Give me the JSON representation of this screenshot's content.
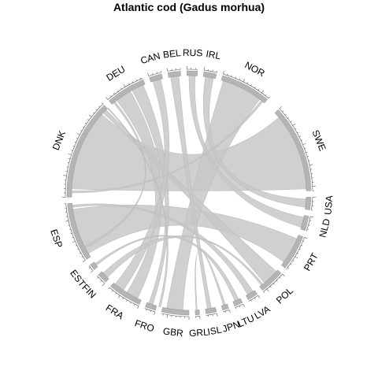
{
  "chart_data": {
    "type": "chord",
    "title": "Atlantic cod (Gadus morhua)",
    "sectors": [
      {
        "name": "SWE",
        "start": 47,
        "end": 89
      },
      {
        "name": "USA",
        "start": 92,
        "end": 98
      },
      {
        "name": "NLD",
        "start": 101,
        "end": 108
      },
      {
        "name": "PRT",
        "start": 111,
        "end": 128
      },
      {
        "name": "POL",
        "start": 131,
        "end": 143
      },
      {
        "name": "LVA",
        "start": 146,
        "end": 151
      },
      {
        "name": "LTU",
        "start": 154,
        "end": 158
      },
      {
        "name": "JPN",
        "start": 161,
        "end": 164
      },
      {
        "name": "ISL",
        "start": 167,
        "end": 172
      },
      {
        "name": "GRL",
        "start": 175,
        "end": 177
      },
      {
        "name": "GBR",
        "start": 180,
        "end": 193
      },
      {
        "name": "FRO",
        "start": 196,
        "end": 201
      },
      {
        "name": "FRA",
        "start": 204,
        "end": 220
      },
      {
        "name": "FIN",
        "start": 223,
        "end": 228
      },
      {
        "name": "EST",
        "start": 231,
        "end": 234
      },
      {
        "name": "ESP",
        "start": 237,
        "end": 265
      },
      {
        "name": "DNK",
        "start": 268,
        "end": 316
      },
      {
        "name": "DEU",
        "start": 319,
        "end": 338
      },
      {
        "name": "CAN",
        "start": 341,
        "end": 347
      },
      {
        "name": "BEL",
        "start": 350,
        "end": 356
      },
      {
        "name": "RUS",
        "start": 359,
        "end": 364
      },
      {
        "name": "IRL",
        "start": 367,
        "end": 373
      },
      {
        "name": "NOR",
        "start": 376,
        "end": 400
      }
    ],
    "links": [
      {
        "s1": 272,
        "s2": 312,
        "t1": 50,
        "t2": 88
      },
      {
        "s1": 239,
        "s2": 262,
        "t1": 113,
        "t2": 126
      },
      {
        "s1": 377,
        "s2": 397,
        "t1": 183,
        "t2": 191
      },
      {
        "s1": 322,
        "s2": 330,
        "t1": 206,
        "t2": 212
      },
      {
        "s1": 313,
        "s2": 315,
        "t1": 132,
        "t2": 140
      },
      {
        "s1": 331,
        "s2": 337,
        "t1": 198,
        "t2": 200
      },
      {
        "s1": 342,
        "s2": 346,
        "t1": 214,
        "t2": 219
      },
      {
        "s1": 351,
        "s2": 355,
        "t1": 169,
        "t2": 171
      },
      {
        "s1": 360,
        "s2": 363,
        "t1": 102,
        "t2": 107
      },
      {
        "s1": 368,
        "s2": 372,
        "t1": 93,
        "t2": 97
      },
      {
        "s1": 263,
        "s2": 264,
        "t1": 147,
        "t2": 150
      },
      {
        "s1": 224,
        "s2": 227,
        "t1": 141,
        "t2": 142
      },
      {
        "s1": 232,
        "s2": 233,
        "t1": 155,
        "t2": 157
      },
      {
        "s1": 162,
        "s2": 163,
        "t1": 176,
        "t2": 176.5
      },
      {
        "s1": 270,
        "s2": 271,
        "t1": 398,
        "t2": 399
      },
      {
        "s1": 316,
        "s2": 316.5,
        "t1": 194,
        "t2": 195
      },
      {
        "s1": 320,
        "s2": 321,
        "t1": 242,
        "t2": 243
      }
    ]
  }
}
